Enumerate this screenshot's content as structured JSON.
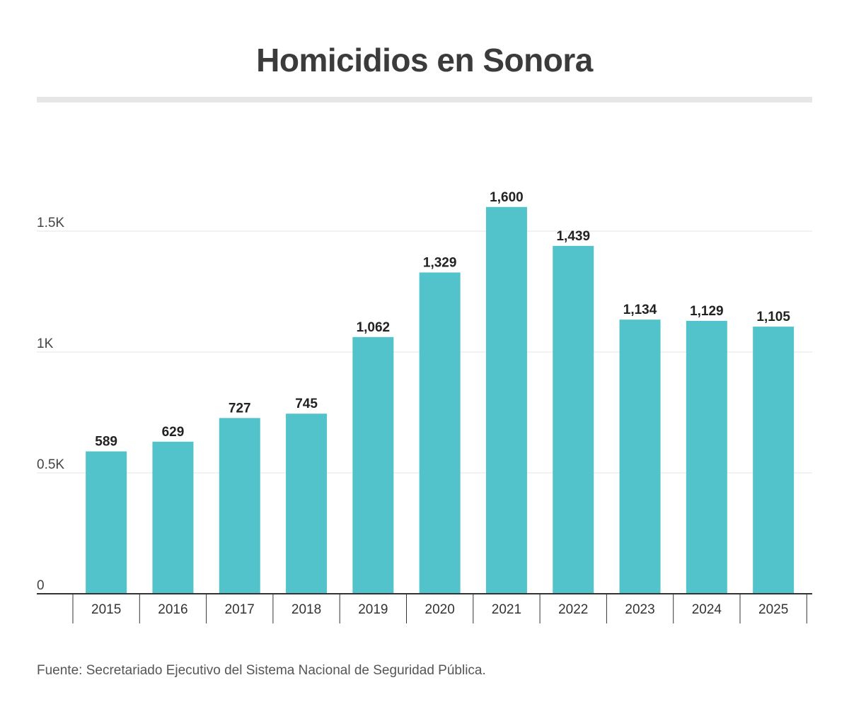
{
  "chart_data": {
    "type": "bar",
    "title": "Homicidios en Sonora",
    "categories": [
      "2015",
      "2016",
      "2017",
      "2018",
      "2019",
      "2020",
      "2021",
      "2022",
      "2023",
      "2024",
      "2025"
    ],
    "values": [
      589,
      629,
      727,
      745,
      1062,
      1329,
      1600,
      1439,
      1134,
      1129,
      1105
    ],
    "data_labels": [
      "589",
      "629",
      "727",
      "745",
      "1,062",
      "1,329",
      "1,600",
      "1,439",
      "1,134",
      "1,129",
      "1,105"
    ],
    "y_ticks": [
      0,
      500,
      1000,
      1500
    ],
    "y_tick_labels": [
      "0",
      "0.5K",
      "1K",
      "1.5K"
    ],
    "xlabel": "",
    "ylabel": "",
    "ylim": [
      0,
      1600
    ],
    "grid": true,
    "bar_color": "#52c3cb"
  },
  "footer": {
    "source": "Fuente: Secretariado Ejecutivo del Sistema Nacional de Seguridad Pública."
  }
}
